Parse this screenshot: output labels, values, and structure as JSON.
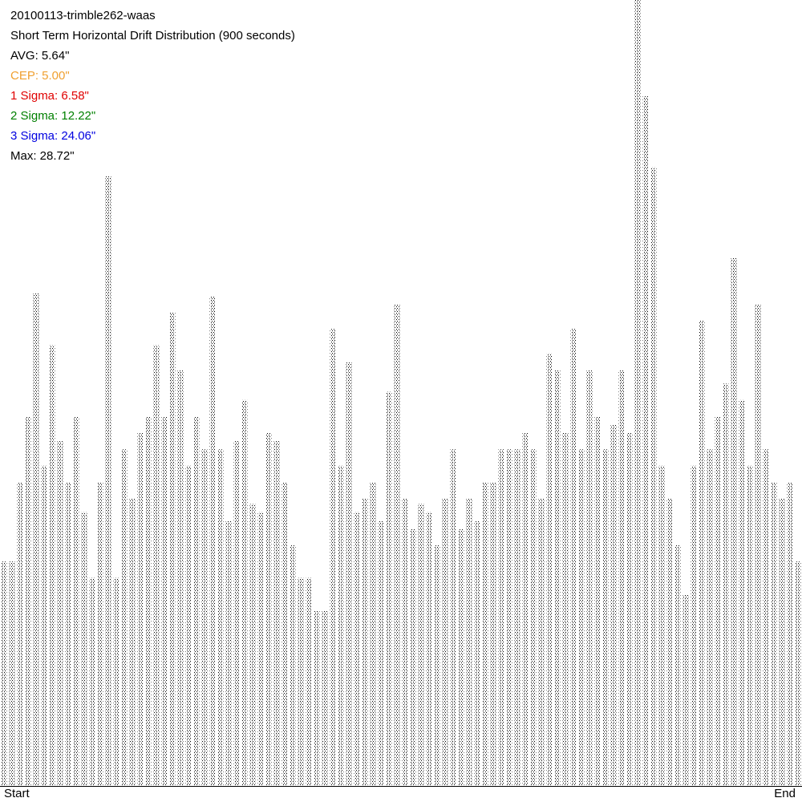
{
  "chart_data": {
    "type": "stem",
    "title": "20100113-trimble262-waas",
    "subtitle": "Short Term Horizontal Drift Distribution (900 seconds)",
    "annotations": [
      {
        "text": "AVG: 5.64\"",
        "color": "#000000"
      },
      {
        "text": "CEP: 5.00\"",
        "color": "#f0a030"
      },
      {
        "text": "1 Sigma: 6.58\"",
        "color": "#e00000"
      },
      {
        "text": "2 Sigma: 12.22\"",
        "color": "#008000"
      },
      {
        "text": "3 Sigma: 24.06\"",
        "color": "#0000e0"
      },
      {
        "text": "Max: 28.72\"",
        "color": "#000000"
      }
    ],
    "categories": [
      "Start",
      null,
      null,
      null,
      null,
      null,
      null,
      null,
      null,
      null,
      null,
      null,
      null,
      null,
      null,
      null,
      null,
      null,
      null,
      null,
      null,
      null,
      null,
      null,
      null,
      null,
      null,
      null,
      null,
      null,
      null,
      null,
      null,
      null,
      null,
      null,
      null,
      null,
      null,
      null,
      null,
      null,
      null,
      null,
      null,
      null,
      null,
      null,
      null,
      null,
      null,
      null,
      null,
      null,
      null,
      null,
      null,
      null,
      null,
      null,
      null,
      null,
      null,
      null,
      null,
      null,
      null,
      null,
      null,
      null,
      null,
      null,
      null,
      null,
      null,
      null,
      null,
      null,
      null,
      null,
      null,
      null,
      null,
      null,
      null,
      null,
      null,
      null,
      null,
      null,
      null,
      null,
      null,
      null,
      null,
      null,
      null,
      null,
      null,
      "End"
    ],
    "values": [
      8.2,
      8.2,
      11.1,
      13.5,
      18.0,
      11.7,
      16.1,
      12.6,
      11.1,
      13.5,
      10.0,
      7.6,
      11.1,
      22.3,
      7.6,
      12.3,
      10.5,
      12.9,
      13.5,
      16.1,
      13.5,
      17.3,
      15.2,
      11.7,
      13.5,
      12.3,
      17.9,
      12.3,
      9.7,
      12.6,
      14.1,
      10.3,
      10.0,
      12.9,
      12.6,
      11.1,
      8.8,
      7.6,
      7.6,
      6.4,
      6.4,
      16.7,
      11.7,
      15.5,
      10.0,
      10.5,
      11.1,
      9.7,
      14.4,
      17.6,
      10.5,
      9.4,
      10.3,
      10.0,
      8.8,
      10.5,
      12.3,
      9.4,
      10.5,
      9.7,
      11.1,
      11.1,
      12.3,
      12.3,
      12.3,
      12.9,
      12.3,
      10.5,
      15.8,
      15.2,
      12.9,
      16.7,
      12.3,
      15.2,
      13.5,
      12.3,
      13.2,
      15.2,
      12.9,
      28.72,
      25.2,
      22.6,
      11.7,
      10.5,
      8.8,
      7.0,
      11.7,
      17.0,
      12.3,
      13.5,
      14.7,
      19.3,
      14.1,
      11.7,
      17.6,
      12.3,
      11.1,
      10.5,
      11.1,
      8.2
    ],
    "color": "#000000",
    "ylim": [
      0,
      28.72
    ]
  }
}
